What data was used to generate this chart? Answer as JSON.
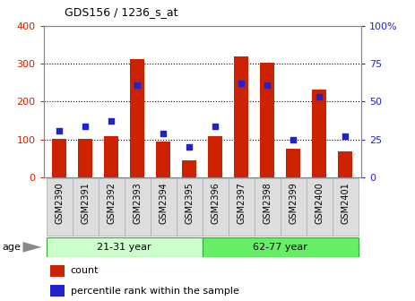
{
  "title": "GDS156 / 1236_s_at",
  "categories": [
    "GSM2390",
    "GSM2391",
    "GSM2392",
    "GSM2393",
    "GSM2394",
    "GSM2395",
    "GSM2396",
    "GSM2397",
    "GSM2398",
    "GSM2399",
    "GSM2400",
    "GSM2401"
  ],
  "counts": [
    103,
    103,
    110,
    312,
    95,
    45,
    108,
    318,
    302,
    75,
    232,
    70
  ],
  "percentiles": [
    31,
    34,
    37,
    61,
    29,
    20,
    34,
    62,
    61,
    25,
    53,
    27
  ],
  "bar_color": "#cc2200",
  "dot_color": "#2222cc",
  "ylim_left": [
    0,
    400
  ],
  "ylim_right": [
    0,
    100
  ],
  "yticks_left": [
    0,
    100,
    200,
    300,
    400
  ],
  "yticks_right": [
    0,
    25,
    50,
    75,
    100
  ],
  "ytick_labels_right": [
    "0",
    "25",
    "50",
    "75",
    "100%"
  ],
  "group1_label": "21-31 year",
  "group2_label": "62-77 year",
  "group1_indices": [
    0,
    1,
    2,
    3,
    4,
    5
  ],
  "group2_indices": [
    6,
    7,
    8,
    9,
    10,
    11
  ],
  "age_label": "age",
  "legend_count": "count",
  "legend_percentile": "percentile rank within the sample",
  "group1_color": "#ccffcc",
  "group2_color": "#66ee66",
  "background_color": "#ffffff",
  "plot_bg_color": "#ffffff",
  "tick_color_left": "#cc2200",
  "tick_color_right": "#2222cc",
  "grid_color": "#000000",
  "bar_width": 0.55,
  "label_box_color": "#dddddd",
  "label_box_edge": "#aaaaaa"
}
